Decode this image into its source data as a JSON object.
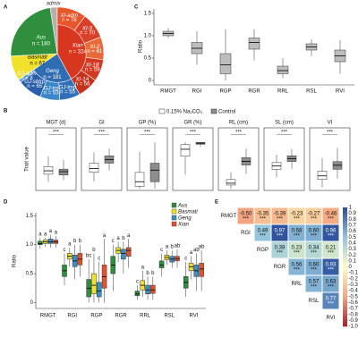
{
  "chart_data": [
    {
      "type": "pie",
      "panel": "A",
      "inner": {
        "categories": [
          "Xian",
          "Geng",
          "Basmati",
          "Aus",
          "admix"
        ],
        "values": [
          324,
          181,
          67,
          180,
          19
        ],
        "value_labels": [
          "n = 324",
          "n = 181",
          "n = 67",
          "n = 180",
          null
        ],
        "colors": [
          "#d7361f",
          "#2f6db3",
          "#f2e12b",
          "#2f8f3e",
          "#b0b0b0"
        ]
      },
      "outer": {
        "categories": [
          "XI-adm",
          "XI-3",
          "XI-2",
          "XI-1B",
          "XI-1A",
          "GJ-tmp",
          "GJ-trp",
          "GJ-sbtrp",
          "GJ-adm"
        ],
        "values": [
          78,
          70,
          61,
          59,
          56,
          55,
          53,
          65,
          8
        ],
        "value_labels": [
          "n = 78",
          "n = 70",
          "n = 61",
          "n = 59",
          "n = 56",
          "n = 55",
          "n = 53",
          "n = 65",
          "n = 8"
        ],
        "colors": [
          "#e8562a",
          "#d9402a",
          "#e86a3a",
          "#d03a22",
          "#c2321e",
          "#2f6fb5",
          "#3a86c8",
          "#2a5ea8",
          "#4d9ad6"
        ]
      }
    },
    {
      "type": "multibox",
      "panel": "B",
      "ylabel": "Trait value",
      "series": [
        {
          "name": "0.15% Na₂CO₃",
          "color": "#ffffff"
        },
        {
          "name": "Control",
          "color": "#8c8c8c"
        }
      ],
      "subplots": [
        {
          "title": "MGT (d)",
          "significance": "***",
          "ylim": [
            2,
            8
          ],
          "values": [
            {
              "min": 2.8,
              "q1": 3.7,
              "median": 4.1,
              "q3": 4.6,
              "max": 5.8
            },
            {
              "min": 3.0,
              "q1": 3.6,
              "median": 4.0,
              "q3": 4.3,
              "max": 5.4
            }
          ]
        },
        {
          "title": "GI",
          "significance": "***",
          "ylim": [
            0,
            1.4
          ],
          "values": [
            {
              "min": 0.2,
              "q1": 0.45,
              "median": 0.55,
              "q3": 0.7,
              "max": 1.0
            },
            {
              "min": 0.5,
              "q1": 0.7,
              "median": 0.8,
              "q3": 0.9,
              "max": 1.1
            }
          ]
        },
        {
          "title": "GP (%)",
          "significance": "***",
          "ylim": [
            0,
            110
          ],
          "values": [
            {
              "min": 0,
              "q1": 5,
              "median": 15,
              "q3": 35,
              "max": 80
            },
            {
              "min": 0,
              "q1": 15,
              "median": 40,
              "q3": 55,
              "max": 100
            }
          ]
        },
        {
          "title": "GR (%)",
          "significance": "***",
          "ylim": [
            0,
            110
          ],
          "values": [
            {
              "min": 30,
              "q1": 70,
              "median": 85,
              "q3": 95,
              "max": 100
            },
            {
              "min": 90,
              "q1": 96,
              "median": 98,
              "q3": 100,
              "max": 100
            }
          ]
        },
        {
          "title": "RL (cm)",
          "significance": "***",
          "ylim": [
            0,
            14
          ],
          "values": [
            {
              "min": 0,
              "q1": 1,
              "median": 1.5,
              "q3": 2.5,
              "max": 4.5
            },
            {
              "min": 4,
              "q1": 6.5,
              "median": 7.5,
              "q3": 8.5,
              "max": 11
            }
          ]
        },
        {
          "title": "SL (cm)",
          "significance": "***",
          "ylim": [
            0,
            9
          ],
          "values": [
            {
              "min": 2,
              "q1": 3.4,
              "median": 4,
              "q3": 4.6,
              "max": 6
            },
            {
              "min": 3.5,
              "q1": 4.8,
              "median": 5.3,
              "q3": 5.8,
              "max": 7
            }
          ]
        },
        {
          "title": "VI",
          "significance": "***",
          "ylim": [
            0,
            10
          ],
          "values": [
            {
              "min": 0.3,
              "q1": 1.8,
              "median": 2.5,
              "q3": 3.4,
              "max": 6
            },
            {
              "min": 2,
              "q1": 3.8,
              "median": 4.6,
              "q3": 5.3,
              "max": 8
            }
          ]
        }
      ]
    },
    {
      "type": "box",
      "panel": "C",
      "ylabel": "Ratio",
      "color": "#bdbdbd",
      "categories": [
        "RMGT",
        "RGI",
        "RGP",
        "RGR",
        "RRL",
        "RSL",
        "RVI"
      ],
      "values": [
        {
          "min": 0.95,
          "q1": 1.0,
          "median": 1.05,
          "q3": 1.1,
          "max": 1.17
        },
        {
          "min": 0.35,
          "q1": 0.6,
          "median": 0.72,
          "q3": 0.85,
          "max": 1.1
        },
        {
          "min": 0,
          "q1": 0.15,
          "median": 0.35,
          "q3": 0.6,
          "max": 1.15
        },
        {
          "min": 0.45,
          "q1": 0.7,
          "median": 0.85,
          "q3": 0.95,
          "max": 1.15
        },
        {
          "min": 0.05,
          "q1": 0.15,
          "median": 0.22,
          "q3": 0.32,
          "max": 0.5
        },
        {
          "min": 0.55,
          "q1": 0.68,
          "median": 0.75,
          "q3": 0.82,
          "max": 0.92
        },
        {
          "min": 0.15,
          "q1": 0.42,
          "median": 0.55,
          "q3": 0.68,
          "max": 0.9
        }
      ],
      "ylim": [
        -0.1,
        1.6
      ],
      "yticks": [
        0,
        0.5,
        {
          "value": 1,
          "label": "1.0"
        },
        1.5
      ]
    },
    {
      "type": "groupbox",
      "panel": "D",
      "ylabel": "Ratio",
      "categories": [
        "RMGT",
        "RGI",
        "RGP",
        "RGR",
        "RRL",
        "RSL",
        "RVI"
      ],
      "ylim": [
        -0.1,
        1.55
      ],
      "yticks": [
        0,
        0.5,
        {
          "value": 1,
          "label": "1.0"
        },
        1.5
      ],
      "series": [
        {
          "name": "Aus",
          "color": "#2f8f3e",
          "letters": [
            "a",
            "c",
            "bc",
            "c",
            "c",
            "c",
            "c"
          ],
          "values": [
            {
              "min": 0.93,
              "q1": 1.0,
              "median": 1.02,
              "q3": 1.06,
              "max": 1.12
            },
            {
              "min": 0.3,
              "q1": 0.45,
              "median": 0.55,
              "q3": 0.65,
              "max": 0.85
            },
            {
              "min": 0,
              "q1": 0.1,
              "median": 0.25,
              "q3": 0.4,
              "max": 0.75
            },
            {
              "min": 0.2,
              "q1": 0.5,
              "median": 0.65,
              "q3": 0.8,
              "max": 1.0
            },
            {
              "min": 0.05,
              "q1": 0.12,
              "median": 0.15,
              "q3": 0.2,
              "max": 0.3
            },
            {
              "min": 0.45,
              "q1": 0.6,
              "median": 0.65,
              "q3": 0.72,
              "max": 0.85
            },
            {
              "min": 0.1,
              "q1": 0.25,
              "median": 0.35,
              "q3": 0.45,
              "max": 0.7
            }
          ]
        },
        {
          "name": "Basmati",
          "color": "#f2e12b",
          "letters": [
            "a",
            "a",
            "b",
            "a",
            "a",
            "a",
            "a"
          ],
          "values": [
            {
              "min": 0.96,
              "q1": 1.02,
              "median": 1.05,
              "q3": 1.08,
              "max": 1.12
            },
            {
              "min": 0.62,
              "q1": 0.75,
              "median": 0.8,
              "q3": 0.85,
              "max": 0.95
            },
            {
              "min": 0,
              "q1": 0.15,
              "median": 0.3,
              "q3": 0.5,
              "max": 0.85
            },
            {
              "min": 0.7,
              "q1": 0.85,
              "median": 0.9,
              "q3": 0.95,
              "max": 1.05
            },
            {
              "min": 0.1,
              "q1": 0.22,
              "median": 0.3,
              "q3": 0.38,
              "max": 0.55
            },
            {
              "min": 0.65,
              "q1": 0.74,
              "median": 0.78,
              "q3": 0.82,
              "max": 0.9
            },
            {
              "min": 0.4,
              "q1": 0.55,
              "median": 0.62,
              "q3": 0.68,
              "max": 0.8
            }
          ]
        },
        {
          "name": "Geng",
          "color": "#3a8fc4",
          "letters": [
            "a",
            "b",
            "c",
            "b",
            "b",
            "b",
            "ab"
          ],
          "values": [
            {
              "min": 0.95,
              "q1": 1.02,
              "median": 1.05,
              "q3": 1.1,
              "max": 1.17
            },
            {
              "min": 0.4,
              "q1": 0.62,
              "median": 0.72,
              "q3": 0.82,
              "max": 1.0
            },
            {
              "min": 0,
              "q1": 0.1,
              "median": 0.2,
              "q3": 0.35,
              "max": 0.7
            },
            {
              "min": 0.5,
              "q1": 0.75,
              "median": 0.85,
              "q3": 0.92,
              "max": 1.05
            },
            {
              "min": 0.05,
              "q1": 0.15,
              "median": 0.22,
              "q3": 0.3,
              "max": 0.45
            },
            {
              "min": 0.6,
              "q1": 0.7,
              "median": 0.75,
              "q3": 0.8,
              "max": 0.9
            },
            {
              "min": 0.2,
              "q1": 0.45,
              "median": 0.55,
              "q3": 0.65,
              "max": 0.85
            }
          ]
        },
        {
          "name": "Xian",
          "color": "#e0532f",
          "letters": [
            "a",
            "b",
            "a",
            "a",
            "b",
            "ab",
            "ab"
          ],
          "values": [
            {
              "min": 0.95,
              "q1": 1.02,
              "median": 1.05,
              "q3": 1.08,
              "max": 1.15
            },
            {
              "min": 0.45,
              "q1": 0.65,
              "median": 0.75,
              "q3": 0.85,
              "max": 1.0
            },
            {
              "min": 0,
              "q1": 0.25,
              "median": 0.45,
              "q3": 0.65,
              "max": 1.1
            },
            {
              "min": 0.6,
              "q1": 0.8,
              "median": 0.9,
              "q3": 0.95,
              "max": 1.1
            },
            {
              "min": 0.05,
              "q1": 0.16,
              "median": 0.22,
              "q3": 0.3,
              "max": 0.45
            },
            {
              "min": 0.6,
              "q1": 0.72,
              "median": 0.76,
              "q3": 0.8,
              "max": 0.92
            },
            {
              "min": 0.2,
              "q1": 0.45,
              "median": 0.58,
              "q3": 0.68,
              "max": 0.9
            }
          ]
        }
      ]
    },
    {
      "type": "corr",
      "panel": "E",
      "labels": [
        "RMGT",
        "RGI",
        "RGP",
        "RGR",
        "RRL",
        "RSL",
        "RVI"
      ],
      "matrix": [
        [
          -0.5,
          -0.35,
          -0.39,
          -0.23,
          -0.27,
          -0.46
        ],
        [
          null,
          0.49,
          0.97,
          0.58,
          0.6,
          0.96
        ],
        [
          null,
          null,
          0.38,
          0.23,
          0.34,
          0.21
        ],
        [
          null,
          null,
          null,
          0.56,
          0.6,
          0.93
        ],
        [
          null,
          null,
          null,
          null,
          0.57,
          0.63
        ],
        [
          null,
          null,
          null,
          null,
          null,
          0.77
        ]
      ],
      "value_labels": [
        [
          "-0.50",
          "-0.35",
          "-0.39",
          "-0.23",
          "-0.27",
          "-0.46"
        ],
        [
          null,
          "0.49",
          "0.97",
          "0.58",
          "0.60",
          "0.96"
        ],
        [
          null,
          null,
          "0.38",
          "0.23",
          "0.34",
          "0.21"
        ],
        [
          null,
          null,
          null,
          "0.56",
          "0.60",
          "0.93"
        ],
        [
          null,
          null,
          null,
          null,
          "0.57",
          "0.63"
        ],
        [
          null,
          null,
          null,
          null,
          null,
          "0.77"
        ]
      ],
      "significance": [
        [
          "***",
          "***",
          "***",
          "***",
          "***",
          "***"
        ],
        [
          null,
          "***",
          "***",
          "***",
          "***",
          "***"
        ],
        [
          null,
          null,
          "***",
          "***",
          "***",
          "***"
        ],
        [
          null,
          null,
          null,
          "***",
          "***",
          "***"
        ],
        [
          null,
          null,
          null,
          null,
          "***",
          "***"
        ],
        [
          null,
          null,
          null,
          null,
          null,
          "***"
        ]
      ],
      "clim": [
        -1,
        1
      ],
      "colorscale": [
        "#b2182b",
        "#f4a582",
        "#ffffbf",
        "#92c5de",
        "#2b4c9b"
      ],
      "cticks": [
        1,
        0.9,
        0.8,
        0.7,
        0.6,
        0.5,
        0.4,
        0.3,
        0.2,
        0.1,
        0,
        -0.1,
        -0.2,
        -0.3,
        -0.4,
        -0.5,
        -0.6,
        -0.7,
        -0.8,
        -0.9,
        {
          "value": -1,
          "label": "-1.0"
        }
      ]
    }
  ]
}
